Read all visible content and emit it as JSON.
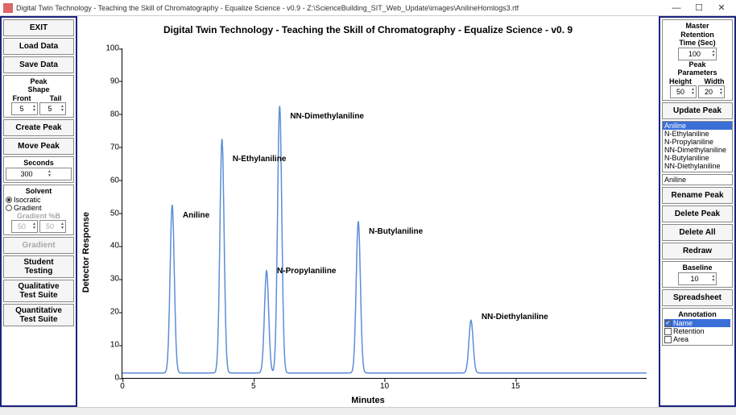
{
  "window": {
    "title": "Digital Twin Technology - Teaching the Skill of Chromatography - Equalize Science - v0.9  -  Z:\\ScienceBuilding_SIT_Web_Update\\images\\AnilineHomlogs3.rtf"
  },
  "left": {
    "exit": "EXIT",
    "load": "Load Data",
    "save": "Save Data",
    "peakshape": {
      "title": "Peak\nShape",
      "front_lbl": "Front",
      "tail_lbl": "Tail",
      "front": "5",
      "tail": "5"
    },
    "create": "Create Peak",
    "move": "Move Peak",
    "seconds": {
      "title": "Seconds",
      "value": "300"
    },
    "solvent": {
      "title": "Solvent",
      "isocratic": "Isocratic",
      "gradient": "Gradient",
      "pctb": "Gradient %B",
      "b1": "50",
      "b2": "50"
    },
    "gradient_btn": "Gradient",
    "student": "Student\nTesting",
    "qual": "Qualitative\nTest Suite",
    "quant": "Quantitative\nTest Suite"
  },
  "right": {
    "master": "Master",
    "ret_title": "Retention\nTime (Sec)",
    "ret_val": "100",
    "peakparams": "Peak\nParameters",
    "height_lbl": "Height",
    "width_lbl": "Width",
    "height": "50",
    "width": "20",
    "update": "Update Peak",
    "list": [
      "Aniline",
      "N-Ethylaniline",
      "N-Propylaniline",
      "NN-Dimethylaniline",
      "N-Butylaniline",
      "NN-Diethylaniline"
    ],
    "selected": "Aniline",
    "rename": "Rename Peak",
    "delete": "Delete Peak",
    "deleteall": "Delete All",
    "redraw": "Redraw",
    "baseline_lbl": "Baseline",
    "baseline": "10",
    "spreadsheet": "Spreadsheet",
    "annotation": "Annotation",
    "chk_name": "Name",
    "chk_ret": "Retention",
    "chk_area": "Area"
  },
  "chart": {
    "title": "Digital Twin Technology - Teaching the Skill of Chromatography - Equalize Science - v0. 9",
    "ylabel": "Detector Response",
    "xlabel": "Minutes",
    "xlim": [
      0,
      20
    ],
    "ylim": [
      0,
      100
    ],
    "xticks": [
      0,
      5,
      10,
      15
    ],
    "yticks": [
      0,
      10,
      20,
      30,
      40,
      50,
      60,
      70,
      80,
      90,
      100
    ],
    "baseline": 1.5,
    "line_color": "#5b8ed6",
    "line_width": 1.5,
    "label_fontsize": 10,
    "peaks": [
      {
        "x": 1.9,
        "height": 51,
        "label": "Aniline",
        "lx": 2.3,
        "ly": 48
      },
      {
        "x": 3.8,
        "height": 71,
        "label": "N-Ethylaniline",
        "lx": 4.2,
        "ly": 65
      },
      {
        "x": 5.5,
        "height": 31,
        "label": "N-Propylaniline",
        "lx": 5.9,
        "ly": 31
      },
      {
        "x": 6.0,
        "height": 81,
        "label": "NN-Dimethylaniline",
        "lx": 6.4,
        "ly": 78
      },
      {
        "x": 9.0,
        "height": 46,
        "label": "N-Butylaniline",
        "lx": 9.4,
        "ly": 43
      },
      {
        "x": 13.3,
        "height": 16,
        "label": "NN-Diethylaniline",
        "lx": 13.7,
        "ly": 17
      }
    ]
  }
}
